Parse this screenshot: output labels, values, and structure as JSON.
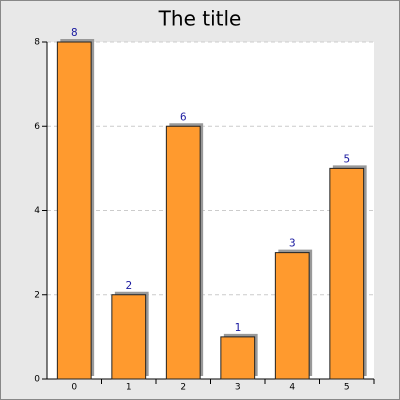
{
  "chart_data": {
    "type": "bar",
    "title": "The title",
    "categories": [
      "0",
      "1",
      "2",
      "3",
      "4",
      "5"
    ],
    "values": [
      8,
      2,
      6,
      1,
      3,
      5
    ],
    "color": "#ff9a2e",
    "ylim": [
      0,
      8
    ],
    "yticks": [
      0,
      2,
      4,
      6,
      8
    ],
    "grid": true
  }
}
